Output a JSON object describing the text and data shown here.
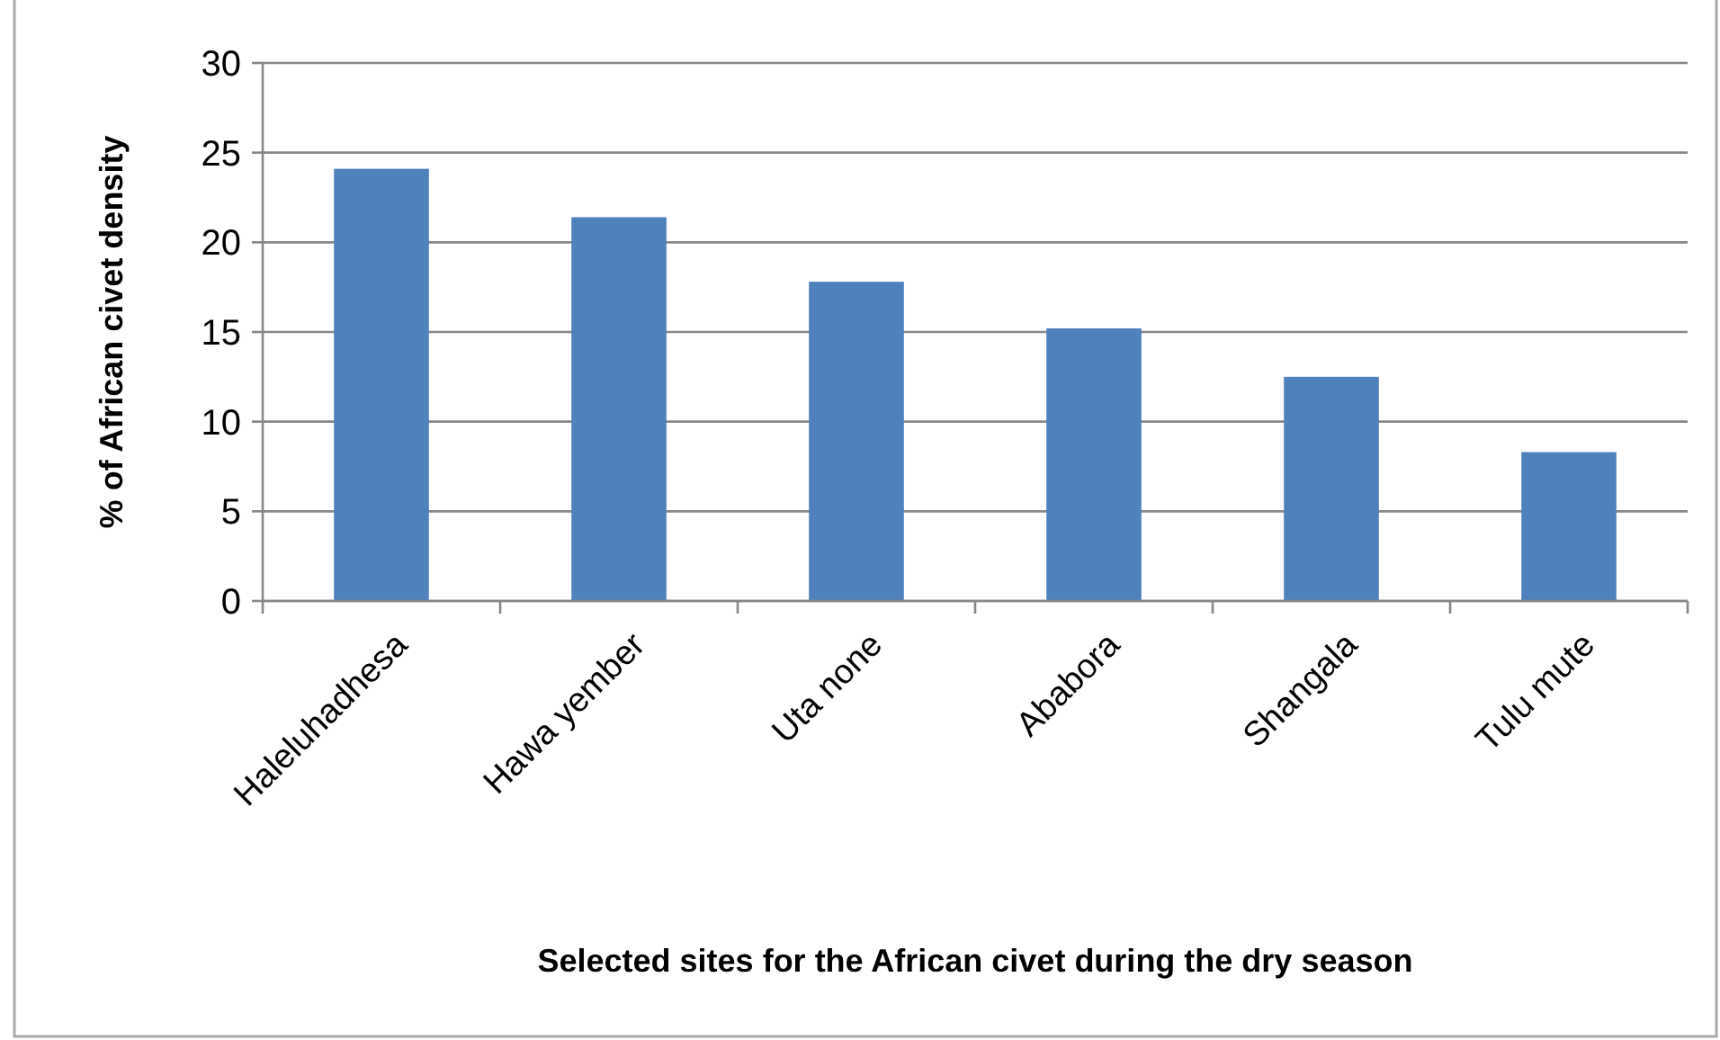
{
  "chart_data": {
    "type": "bar",
    "xlabel": "Selected sites for the African civet during the dry season",
    "ylabel": "% of African civet density",
    "categories": [
      "Haleluhadhesa",
      "Hawa yember",
      "Uta none",
      "Ababora",
      "Shangala",
      "Tulu mute"
    ],
    "values": [
      24.1,
      21.4,
      17.8,
      15.2,
      12.5,
      8.3
    ],
    "color": "#4f81bd",
    "ylim": [
      0,
      30
    ],
    "yticks": [
      0,
      5,
      10,
      15,
      20,
      25,
      30
    ],
    "grid": "y"
  }
}
